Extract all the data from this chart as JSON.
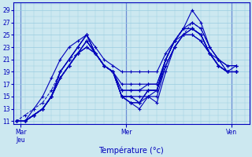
{
  "xlabel": "Température (°c)",
  "ylim": [
    10.5,
    30.2
  ],
  "xlim": [
    -0.3,
    26.5
  ],
  "yticks": [
    11,
    13,
    15,
    17,
    19,
    21,
    23,
    25,
    27,
    29
  ],
  "bg_color": "#cce8f0",
  "grid_color": "#99cce0",
  "line_color": "#0000bb",
  "x_tick_positions": [
    0.5,
    12.5,
    24.5
  ],
  "x_tick_labels": [
    "Mar\nJeu",
    "Mer",
    "Ven"
  ],
  "figsize": [
    3.2,
    2.0
  ],
  "dpi": 100,
  "forecast_lines": [
    [
      11,
      11,
      12,
      13,
      15,
      18,
      20,
      22,
      23,
      22,
      20,
      19,
      15,
      15,
      15,
      15,
      14,
      19,
      23,
      25,
      26,
      25,
      22,
      20,
      19,
      19
    ],
    [
      11,
      11,
      12,
      13,
      15,
      18,
      20,
      22,
      23,
      22,
      20,
      19,
      15,
      15,
      14,
      15,
      15,
      20,
      23,
      25,
      26,
      25,
      22,
      20,
      19,
      19
    ],
    [
      11,
      11,
      12,
      13,
      15,
      18,
      20,
      22,
      24,
      22,
      20,
      19,
      15,
      14,
      14,
      16,
      16,
      21,
      24,
      26,
      26,
      25,
      22,
      20,
      19,
      19
    ],
    [
      11,
      11,
      12,
      13,
      15,
      18,
      20,
      22,
      24,
      22,
      20,
      19,
      15,
      14,
      14,
      16,
      16,
      21,
      24,
      26,
      29,
      27,
      23,
      21,
      20,
      20
    ],
    [
      11,
      11,
      12,
      13,
      15,
      18,
      20,
      22,
      24,
      22,
      20,
      19,
      15,
      14,
      13,
      15,
      16,
      21,
      24,
      26,
      27,
      26,
      23,
      21,
      19,
      20
    ],
    [
      11,
      11,
      12,
      13,
      15,
      19,
      21,
      23,
      25,
      22,
      20,
      19,
      16,
      16,
      16,
      16,
      16,
      20,
      23,
      25,
      25,
      24,
      22,
      20,
      19,
      19
    ],
    [
      11,
      11,
      12,
      13,
      15,
      19,
      21,
      23,
      25,
      22,
      20,
      19,
      16,
      16,
      16,
      17,
      17,
      21,
      24,
      26,
      26,
      25,
      22,
      20,
      19,
      19
    ],
    [
      11,
      11,
      12,
      13,
      15,
      19,
      21,
      23,
      25,
      22,
      20,
      19,
      17,
      17,
      17,
      17,
      17,
      21,
      24,
      26,
      26,
      25,
      22,
      20,
      19,
      19
    ],
    [
      11,
      11,
      13,
      15,
      18,
      21,
      23,
      24,
      25,
      23,
      21,
      20,
      19,
      19,
      19,
      19,
      19,
      22,
      24,
      25,
      25,
      24,
      22,
      21,
      20,
      20
    ]
  ],
  "dashed_line": [
    11,
    12,
    13,
    14,
    16,
    19,
    21,
    22,
    23,
    22,
    20,
    19,
    15,
    15,
    14,
    16,
    16,
    20,
    23,
    25,
    27,
    26,
    23,
    21,
    19,
    19
  ]
}
